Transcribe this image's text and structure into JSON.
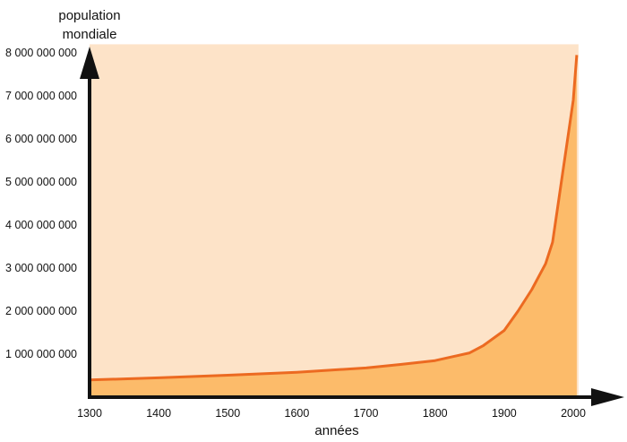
{
  "chart_data": {
    "type": "area",
    "title": "",
    "ylabel_lines": [
      "population",
      "mondiale"
    ],
    "xlabel": "années",
    "xlim": [
      1300,
      2010
    ],
    "ylim": [
      0,
      8200000000
    ],
    "x_ticks": [
      1300,
      1400,
      1500,
      1600,
      1700,
      1800,
      1900,
      2000
    ],
    "y_ticks": [
      1000000000,
      2000000000,
      3000000000,
      4000000000,
      5000000000,
      6000000000,
      7000000000,
      8000000000
    ],
    "x_tick_labels": [
      "1300",
      "1400",
      "1500",
      "1600",
      "1700",
      "1800",
      "1900",
      "2000"
    ],
    "y_tick_labels": [
      "1 000 000 000",
      "2 000 000 000",
      "3 000 000 000",
      "4 000 000 000",
      "5 000 000 000",
      "6 000 000 000",
      "7 000 000 000",
      "8 000 000 000"
    ],
    "grid": false,
    "series": [
      {
        "x": [
          1300,
          1400,
          1500,
          1600,
          1700,
          1750,
          1800,
          1850,
          1870,
          1900,
          1920,
          1940,
          1950,
          1960,
          1970,
          1980,
          1990,
          2000,
          2005
        ],
        "y": [
          400000000,
          450000000,
          510000000,
          580000000,
          680000000,
          760000000,
          850000000,
          1030000000,
          1200000000,
          1550000000,
          2000000000,
          2500000000,
          2800000000,
          3100000000,
          3600000000,
          4700000000,
          5800000000,
          6900000000,
          7950000000
        ]
      }
    ],
    "colors": {
      "background_fill": "#fde3c8",
      "area_fill": "#fcbb6a",
      "line": "#ec6a21",
      "axis": "#111111"
    }
  }
}
